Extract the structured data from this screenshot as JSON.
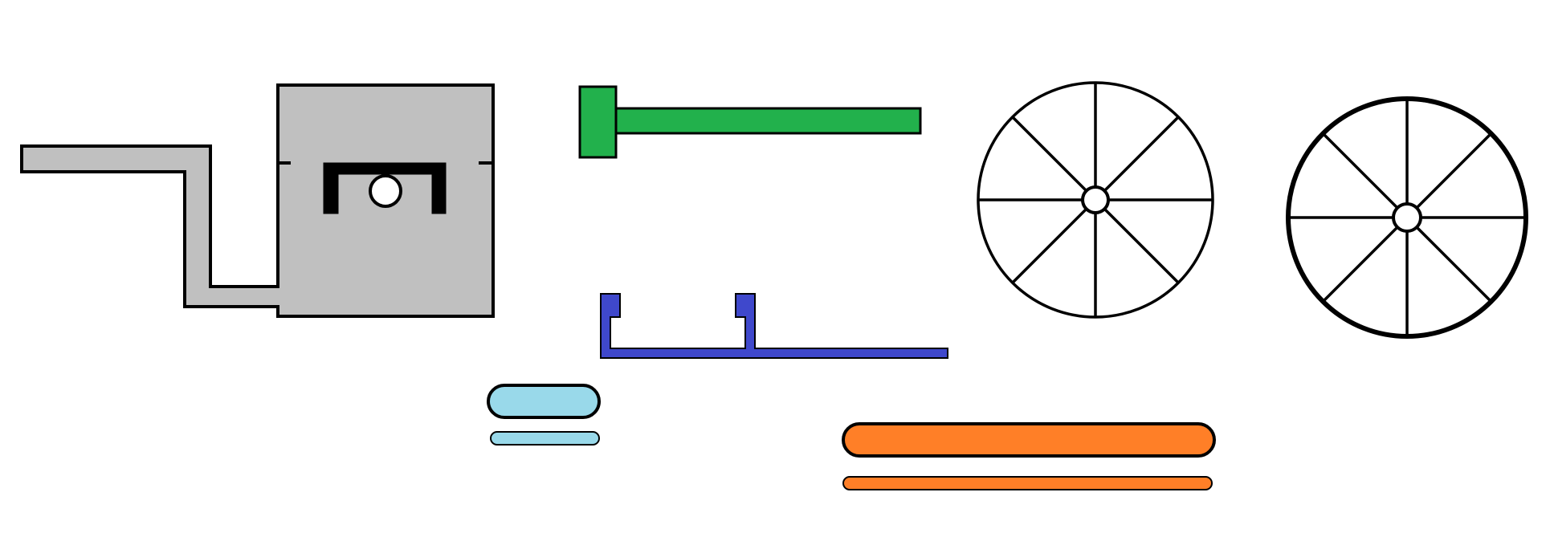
{
  "diagram": {
    "parts": [
      {
        "id": "housing-with-bracket",
        "color": "#c0c0c0",
        "stroke": "#000000"
      },
      {
        "id": "green-t-bar",
        "color": "#22b14c",
        "stroke": "#000000"
      },
      {
        "id": "blue-channel-bracket",
        "color": "#3f48cc",
        "stroke": "#000000"
      },
      {
        "id": "spoked-wheel-thin-rim",
        "color": "#ffffff",
        "stroke": "#000000",
        "spokes": 8
      },
      {
        "id": "spoked-wheel-thick-rim",
        "color": "#ffffff",
        "stroke": "#000000",
        "spokes": 8
      },
      {
        "id": "light-blue-capsule-large",
        "color": "#99d9ea",
        "stroke": "#000000"
      },
      {
        "id": "light-blue-capsule-small",
        "color": "#99d9ea",
        "stroke": "#000000"
      },
      {
        "id": "orange-capsule-large",
        "color": "#ff7f27",
        "stroke": "#000000"
      },
      {
        "id": "orange-capsule-small",
        "color": "#ff7f27",
        "stroke": "#000000"
      }
    ]
  }
}
